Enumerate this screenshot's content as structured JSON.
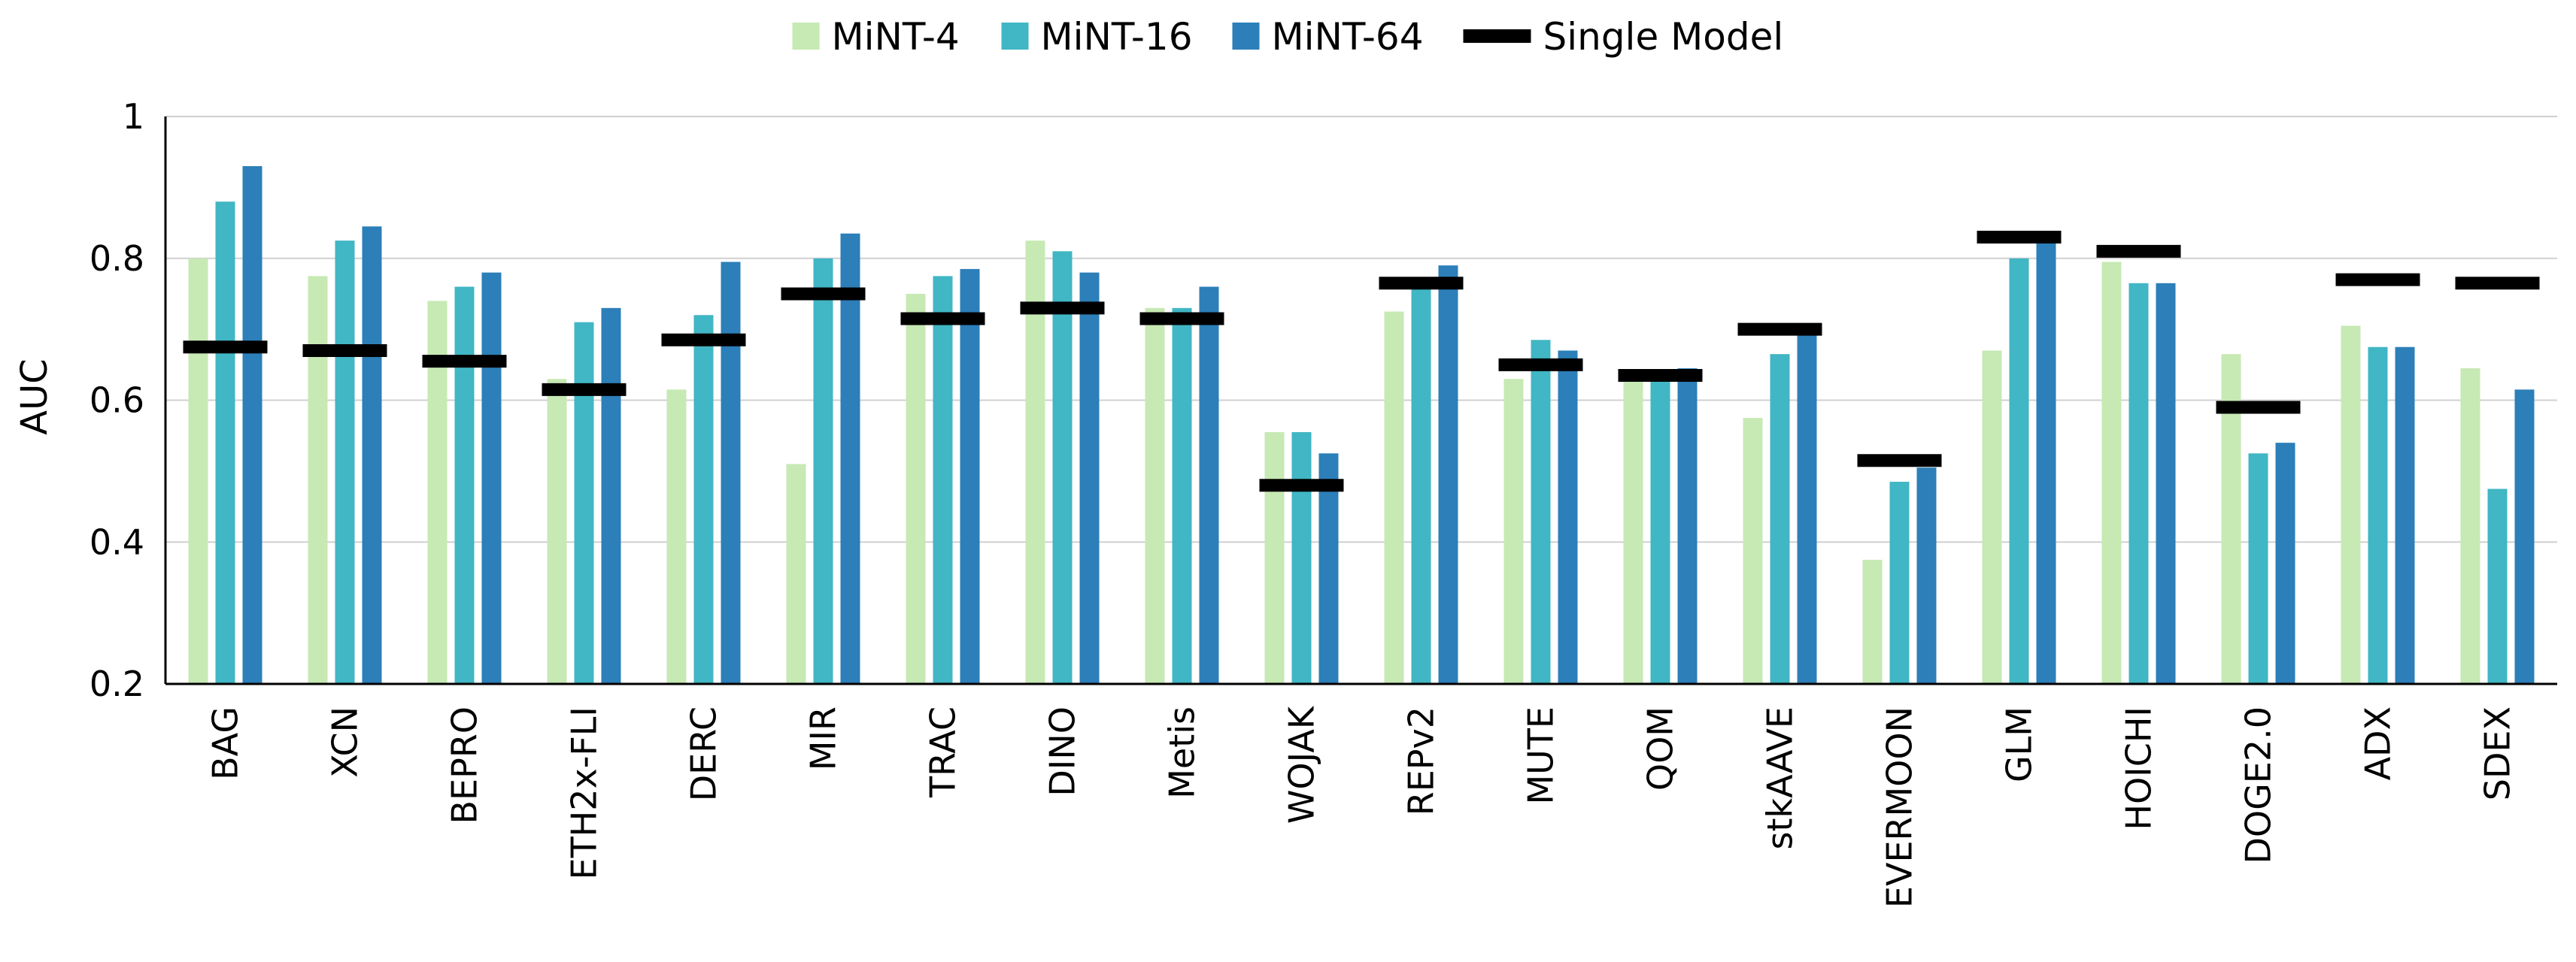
{
  "chart_data": {
    "type": "bar",
    "ylabel": "AUC",
    "ylim": [
      0.2,
      1
    ],
    "yticks": [
      "0.2",
      "0.4",
      "0.6",
      "0.8",
      "1"
    ],
    "grid": true,
    "legend_position": "top",
    "categories": [
      "BAG",
      "XCN",
      "BEPRO",
      "ETH2x-FLI",
      "DERC",
      "MIR",
      "TRAC",
      "DINO",
      "Metis",
      "WOJAK",
      "REPv2",
      "MUTE",
      "QOM",
      "stkAAVE",
      "EVERMOON",
      "GLM",
      "HOICHI",
      "DOGE2.0",
      "ADX",
      "SDEX"
    ],
    "series": [
      {
        "name": "MiNT-4",
        "color": "#c7e9b4",
        "values": [
          0.8,
          0.775,
          0.74,
          0.63,
          0.615,
          0.51,
          0.75,
          0.825,
          0.73,
          0.555,
          0.725,
          0.63,
          0.64,
          0.575,
          0.375,
          0.67,
          0.795,
          0.665,
          0.705,
          0.645
        ]
      },
      {
        "name": "MiNT-16",
        "color": "#41b6c4",
        "values": [
          0.88,
          0.825,
          0.76,
          0.71,
          0.72,
          0.8,
          0.775,
          0.81,
          0.73,
          0.555,
          0.76,
          0.685,
          0.63,
          0.665,
          0.485,
          0.8,
          0.765,
          0.525,
          0.675,
          0.475
        ]
      },
      {
        "name": "MiNT-64",
        "color": "#2c7fb8",
        "values": [
          0.93,
          0.845,
          0.78,
          0.73,
          0.795,
          0.835,
          0.785,
          0.78,
          0.76,
          0.525,
          0.79,
          0.67,
          0.645,
          0.7,
          0.505,
          0.825,
          0.765,
          0.54,
          0.675,
          0.615
        ]
      },
      {
        "name": "Single Model",
        "color": "#000000",
        "mark": "line",
        "values": [
          0.675,
          0.67,
          0.655,
          0.615,
          0.685,
          0.75,
          0.715,
          0.73,
          0.715,
          0.48,
          0.765,
          0.65,
          0.635,
          0.7,
          0.515,
          0.83,
          0.81,
          0.59,
          0.77,
          0.765
        ]
      }
    ]
  }
}
